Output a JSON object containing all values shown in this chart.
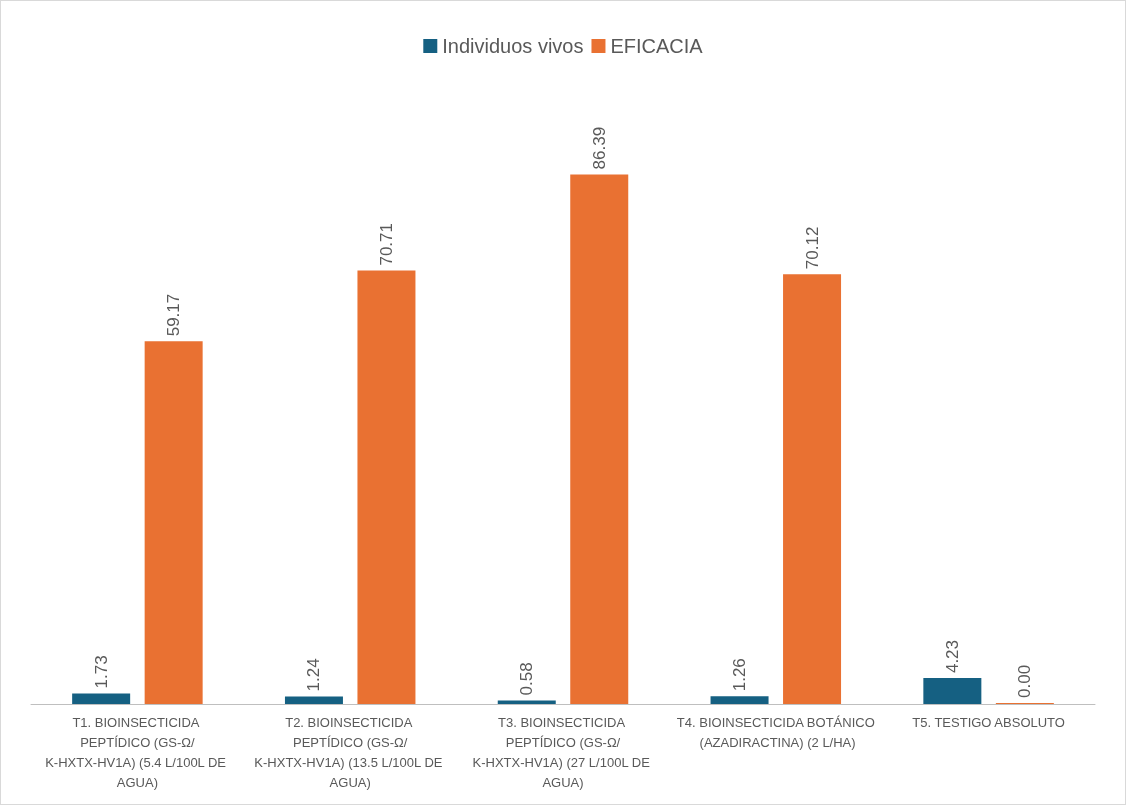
{
  "chart_data": {
    "type": "bar",
    "categories": [
      "T1. BIOINSECTICIDA PEPTÍDICO (GS-Ω/K-HXTX-HV1A) (5.4 L/100L DE AGUA)",
      "T2. BIOINSECTICIDA PEPTÍDICO (GS-Ω/K-HXTX-HV1A) (13.5 L/100L DE AGUA)",
      "T3. BIOINSECTICIDA PEPTÍDICO (GS-Ω/K-HXTX-HV1A) (27 L/100L DE AGUA)",
      "T4. BIOINSECTICIDA BOTÁNICO (AZADIRACTINA) (2 L/HA)",
      "T5. TESTIGO ABSOLUTO"
    ],
    "series": [
      {
        "name": "Individuos vivos",
        "color": "#156082",
        "values": [
          1.73,
          1.24,
          0.58,
          1.26,
          4.23
        ],
        "value_labels": [
          "1.73",
          "1.24",
          "0.58",
          "1.26",
          "4.23"
        ]
      },
      {
        "name": "EFICACIA",
        "color": "#e97132",
        "values": [
          59.17,
          70.71,
          86.39,
          70.12,
          0
        ],
        "value_labels": [
          "59.17",
          "70.71",
          "86.39",
          "70.12",
          "0.00"
        ]
      }
    ],
    "legend": "top"
  }
}
